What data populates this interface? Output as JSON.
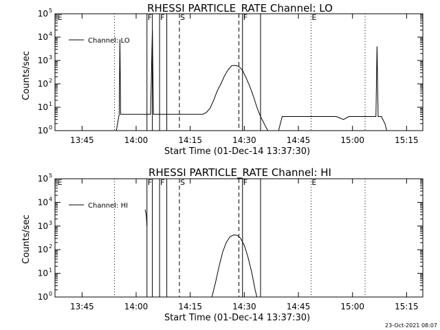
{
  "footer": {
    "timestamp": "23-Oct-2021 08:07"
  },
  "chart_data": [
    {
      "type": "line",
      "title": "RHESSI PARTICLE_RATE Channel: LO",
      "xlabel": "Start Time (01-Dec-14 13:37:30)",
      "ylabel": "Counts/sec",
      "xticks": [
        "13:45",
        "14:00",
        "14:15",
        "14:30",
        "14:45",
        "15:00",
        "15:15"
      ],
      "xlim_minutes_after_start": [
        0,
        102
      ],
      "ylim": [
        1,
        100000
      ],
      "yscale": "log",
      "ytick_mantissa": "10",
      "ytick_exponents": [
        "0",
        "1",
        "2",
        "3",
        "4",
        "5"
      ],
      "grid": false,
      "legend": {
        "placement": "top-left",
        "entries": [
          "Channel: LO"
        ]
      },
      "series": [
        {
          "name": "Channel: LO",
          "points": [
            [
              0,
              1
            ],
            [
              2,
              1
            ],
            [
              2.5,
              1
            ],
            [
              3.5,
              1
            ],
            [
              4.5,
              1
            ],
            [
              5,
              1
            ],
            [
              6.5,
              1
            ],
            [
              8,
              1
            ],
            [
              9.5,
              1
            ],
            [
              11,
              1
            ],
            [
              12.5,
              1
            ],
            [
              14,
              1
            ],
            [
              14.8,
              1
            ],
            [
              15.8,
              1
            ],
            [
              17,
              1
            ],
            [
              17.8,
              5
            ],
            [
              18,
              8000
            ],
            [
              18.2,
              5
            ],
            [
              19.5,
              5
            ],
            [
              20.5,
              5
            ],
            [
              22,
              5
            ],
            [
              24,
              5
            ],
            [
              25.5,
              5
            ],
            [
              26.5,
              5
            ],
            [
              27,
              20000
            ],
            [
              27.3,
              5
            ],
            [
              28.5,
              5
            ],
            [
              30,
              5
            ],
            [
              31.5,
              5
            ],
            [
              32.5,
              5
            ],
            [
              34,
              5
            ],
            [
              36,
              5
            ],
            [
              37,
              5
            ],
            [
              38,
              5
            ],
            [
              39,
              5
            ],
            [
              40,
              5
            ],
            [
              41,
              5
            ],
            [
              42,
              6
            ],
            [
              43,
              9
            ],
            [
              44,
              20
            ],
            [
              45,
              50
            ],
            [
              46,
              100
            ],
            [
              47,
              220
            ],
            [
              48,
              400
            ],
            [
              49,
              600
            ],
            [
              50,
              620
            ],
            [
              51,
              560
            ],
            [
              52,
              380
            ],
            [
              53,
              180
            ],
            [
              54,
              80
            ],
            [
              55,
              30
            ],
            [
              56,
              10
            ],
            [
              57,
              4
            ],
            [
              58,
              2
            ],
            [
              59,
              1
            ],
            [
              60,
              1
            ],
            [
              61,
              1
            ],
            [
              62,
              1
            ],
            [
              63,
              4
            ],
            [
              64,
              4
            ],
            [
              66,
              4
            ],
            [
              68,
              4
            ],
            [
              70,
              4
            ],
            [
              72,
              4
            ],
            [
              74,
              4
            ],
            [
              76,
              4
            ],
            [
              78,
              4
            ],
            [
              80,
              3
            ],
            [
              81.5,
              4
            ],
            [
              84,
              4
            ],
            [
              86,
              4
            ],
            [
              88,
              4
            ],
            [
              89,
              4
            ],
            [
              89.3,
              4000
            ],
            [
              89.6,
              4
            ],
            [
              90.5,
              4
            ],
            [
              91.5,
              2
            ],
            [
              92,
              1
            ],
            [
              93,
              1
            ],
            [
              95,
              1
            ],
            [
              97,
              1
            ],
            [
              99,
              1
            ],
            [
              101,
              1
            ]
          ]
        }
      ],
      "solid_markers": [
        25.5,
        27.0,
        29.0,
        31.0,
        52.0,
        57.0
      ],
      "dashed_markers": [
        34.5,
        51.0
      ],
      "dotted_markers": [
        16.5,
        71.0,
        86.0
      ],
      "flags": [
        {
          "at": 0.5,
          "label": "E"
        },
        {
          "at": 25.5,
          "label": "F"
        },
        {
          "at": 29.0,
          "label": "F"
        },
        {
          "at": 34.5,
          "label": "S"
        },
        {
          "at": 52.0,
          "label": "F"
        },
        {
          "at": 71.0,
          "label": "E"
        }
      ]
    },
    {
      "type": "line",
      "title": "RHESSI PARTICLE_RATE Channel: HI",
      "xlabel": "Start Time (01-Dec-14 13:37:30)",
      "ylabel": "Counts/sec",
      "xticks": [
        "13:45",
        "14:00",
        "14:15",
        "14:30",
        "14:45",
        "15:00",
        "15:15"
      ],
      "xlim_minutes_after_start": [
        0,
        102
      ],
      "ylim": [
        1,
        100000
      ],
      "yscale": "log",
      "ytick_mantissa": "10",
      "ytick_exponents": [
        "0",
        "1",
        "2",
        "3",
        "4",
        "5"
      ],
      "grid": false,
      "legend": {
        "placement": "top-left",
        "entries": [
          "Channel: HI"
        ]
      },
      "series": [
        {
          "name": "Channel: HI",
          "points": [
            [
              25.0,
              5000
            ],
            [
              25.3,
              3000
            ],
            [
              25.5,
              1000
            ]
          ]
        },
        {
          "name": "Channel: HI",
          "points": [
            [
              43.5,
              1
            ],
            [
              44.5,
              4
            ],
            [
              45.5,
              20
            ],
            [
              46.5,
              80
            ],
            [
              47.5,
              200
            ],
            [
              48.5,
              350
            ],
            [
              49.5,
              420
            ],
            [
              50.5,
              410
            ],
            [
              51.5,
              300
            ],
            [
              52.5,
              150
            ],
            [
              53.5,
              50
            ],
            [
              54.5,
              12
            ],
            [
              55.5,
              2
            ],
            [
              56,
              1
            ]
          ]
        }
      ],
      "solid_markers": [
        25.5,
        27.0,
        29.0,
        31.0,
        52.0,
        57.0
      ],
      "dashed_markers": [
        34.5,
        51.0
      ],
      "dotted_markers": [
        16.5,
        71.0,
        86.0
      ],
      "flags": [
        {
          "at": 0.5,
          "label": "E"
        },
        {
          "at": 25.5,
          "label": "F"
        },
        {
          "at": 29.0,
          "label": "F"
        },
        {
          "at": 34.5,
          "label": "S"
        },
        {
          "at": 52.0,
          "label": "F"
        },
        {
          "at": 71.0,
          "label": "E"
        }
      ]
    }
  ]
}
